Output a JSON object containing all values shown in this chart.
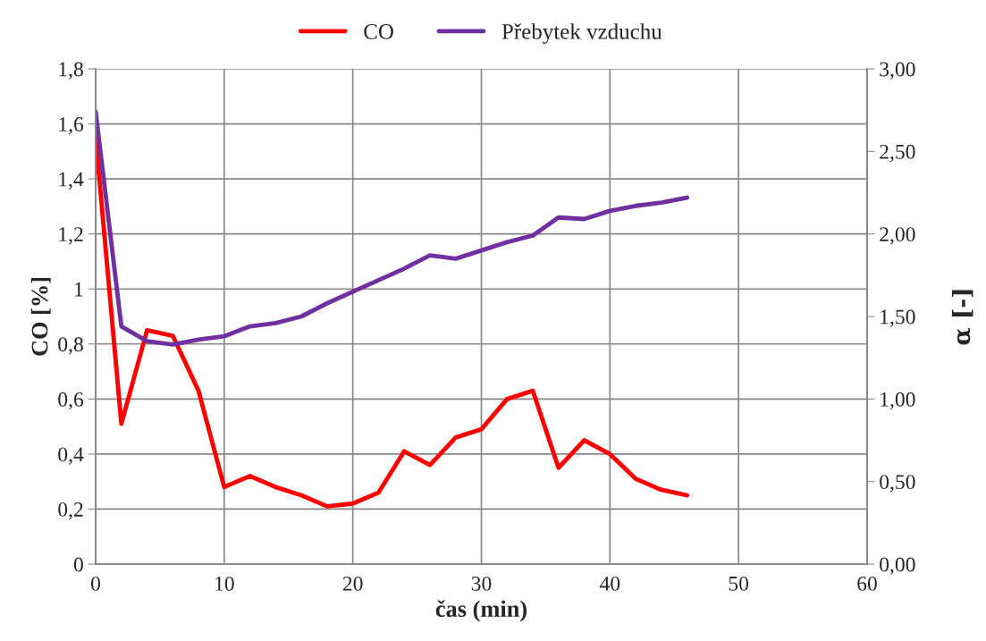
{
  "chart_data": {
    "type": "line",
    "xlabel": "čas (min)",
    "ylabel": "CO [%]",
    "y2label": "α [-]",
    "x": [
      0,
      2,
      4,
      6,
      8,
      10,
      12,
      14,
      16,
      18,
      20,
      22,
      24,
      26,
      28,
      30,
      32,
      34,
      36,
      38,
      40,
      42,
      44,
      46
    ],
    "series": [
      {
        "name": "CO",
        "color": "#ff0000",
        "values": [
          1.55,
          0.51,
          0.85,
          0.83,
          0.63,
          0.28,
          0.32,
          0.28,
          0.25,
          0.21,
          0.22,
          0.26,
          0.41,
          0.36,
          0.46,
          0.49,
          0.6,
          0.63,
          0.35,
          0.45,
          0.4,
          0.31,
          0.27,
          0.25
        ]
      },
      {
        "name": "Přebytek vzduchu",
        "color": "#7030a0",
        "axis": "y2",
        "values": [
          2.74,
          1.44,
          1.35,
          1.33,
          1.36,
          1.38,
          1.44,
          1.46,
          1.5,
          1.58,
          1.65,
          1.72,
          1.79,
          1.87,
          1.85,
          1.9,
          1.95,
          1.99,
          2.1,
          2.09,
          2.14,
          2.17,
          2.19,
          2.22
        ]
      }
    ],
    "xlim": [
      0,
      60
    ],
    "xticks": [
      0,
      10,
      20,
      30,
      40,
      50,
      60
    ],
    "ylim": [
      0,
      1.8
    ],
    "yticks": [
      0,
      {
        "value": 0.2,
        "label": "0,2"
      },
      {
        "value": 0.4,
        "label": "0,4"
      },
      {
        "value": 0.6,
        "label": "0,6"
      },
      {
        "value": 0.8,
        "label": "0,8"
      },
      1,
      {
        "value": 1.2,
        "label": "1,2"
      },
      {
        "value": 1.4,
        "label": "1,4"
      },
      {
        "value": 1.6,
        "label": "1,6"
      },
      {
        "value": 1.8,
        "label": "1,8"
      }
    ],
    "y2lim": [
      0,
      3
    ],
    "y2ticks": [
      {
        "value": 0,
        "label": "0,00"
      },
      {
        "value": 0.5,
        "label": "0,50"
      },
      {
        "value": 1,
        "label": "1,00"
      },
      {
        "value": 1.5,
        "label": "1,50"
      },
      {
        "value": 2,
        "label": "2,00"
      },
      {
        "value": 2.5,
        "label": "2,50"
      },
      {
        "value": 3,
        "label": "3,00"
      }
    ],
    "grid": true,
    "legend": "top",
    "marker": "none",
    "line_style": "solid"
  }
}
